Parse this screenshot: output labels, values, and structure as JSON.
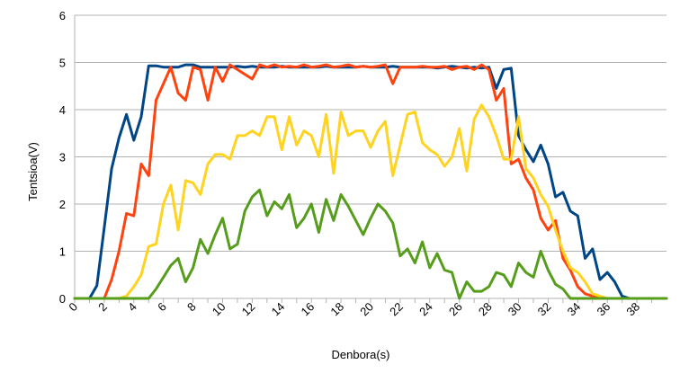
{
  "chart_data": {
    "type": "line",
    "title": "",
    "xlabel": "Denbora(s)",
    "ylabel": "Tentsioa(V)",
    "xlim": [
      0,
      40
    ],
    "ylim": [
      0,
      6
    ],
    "x_ticks": [
      "0",
      "2",
      "4",
      "6",
      "8",
      "10",
      "12",
      "14",
      "16",
      "18",
      "20",
      "22",
      "24",
      "26",
      "28",
      "30",
      "32",
      "34",
      "36",
      "38"
    ],
    "y_ticks": [
      "0",
      "1",
      "2",
      "3",
      "4",
      "5",
      "6"
    ],
    "grid": "horizontal",
    "legend": "none",
    "series": [
      {
        "color": "#004586",
        "x": [
          0,
          0.5,
          1,
          1.5,
          2,
          2.5,
          3,
          3.5,
          4,
          4.5,
          5,
          5.5,
          6,
          6.5,
          7,
          7.5,
          8,
          8.5,
          9,
          9.5,
          10,
          10.5,
          11,
          11.5,
          12,
          12.5,
          13,
          13.5,
          14,
          14.5,
          15,
          15.5,
          16,
          16.5,
          17,
          17.5,
          18,
          18.5,
          19,
          19.5,
          20,
          20.5,
          21,
          21.5,
          22,
          22.5,
          23,
          23.5,
          24,
          24.5,
          25,
          25.5,
          26,
          26.5,
          27,
          27.5,
          28,
          28.5,
          29,
          29.5,
          30,
          30.5,
          31,
          31.5,
          32,
          32.5,
          33,
          33.5,
          34,
          34.5,
          35,
          35.5,
          36,
          36.5,
          37,
          37.5,
          38,
          38.5,
          39,
          39.5,
          40
        ],
        "y": [
          0,
          0,
          0,
          0.27,
          1.5,
          2.75,
          3.4,
          3.9,
          3.35,
          3.85,
          4.93,
          4.93,
          4.9,
          4.9,
          4.9,
          4.95,
          4.95,
          4.9,
          4.9,
          4.9,
          4.9,
          4.9,
          4.92,
          4.9,
          4.92,
          4.9,
          4.9,
          4.9,
          4.92,
          4.9,
          4.9,
          4.9,
          4.9,
          4.9,
          4.92,
          4.9,
          4.9,
          4.9,
          4.9,
          4.92,
          4.9,
          4.9,
          4.9,
          4.92,
          4.9,
          4.9,
          4.9,
          4.9,
          4.9,
          4.88,
          4.9,
          4.92,
          4.9,
          4.88,
          4.9,
          4.88,
          4.9,
          4.45,
          4.85,
          4.88,
          3.45,
          3.15,
          2.9,
          3.25,
          2.85,
          2.15,
          2.25,
          1.85,
          1.75,
          0.85,
          1.05,
          0.4,
          0.55,
          0.35,
          0.05,
          0,
          0,
          0,
          0,
          0,
          0
        ]
      },
      {
        "color": "#ff420e",
        "x": [
          0,
          0.5,
          1,
          1.5,
          2,
          2.5,
          3,
          3.5,
          4,
          4.5,
          5,
          5.5,
          6,
          6.5,
          7,
          7.5,
          8,
          8.5,
          9,
          9.5,
          10,
          10.5,
          11,
          11.5,
          12,
          12.5,
          13,
          13.5,
          14,
          14.5,
          15,
          15.5,
          16,
          16.5,
          17,
          17.5,
          18,
          18.5,
          19,
          19.5,
          20,
          20.5,
          21,
          21.5,
          22,
          22.5,
          23,
          23.5,
          24,
          24.5,
          25,
          25.5,
          26,
          26.5,
          27,
          27.5,
          28,
          28.5,
          29,
          29.5,
          30,
          30.5,
          31,
          31.5,
          32,
          32.5,
          33,
          33.5,
          34,
          34.5,
          35,
          35.5,
          36,
          36.5,
          37,
          37.5,
          38,
          38.5,
          39,
          39.5,
          40
        ],
        "y": [
          0,
          0,
          0,
          0,
          0,
          0.4,
          1.0,
          1.8,
          1.75,
          2.85,
          2.6,
          4.2,
          4.55,
          4.9,
          4.35,
          4.2,
          4.9,
          4.85,
          4.2,
          4.9,
          4.6,
          4.95,
          4.85,
          4.75,
          4.65,
          4.95,
          4.9,
          4.95,
          4.9,
          4.92,
          4.9,
          4.95,
          4.9,
          4.92,
          4.95,
          4.9,
          4.92,
          4.95,
          4.9,
          4.92,
          4.9,
          4.92,
          4.95,
          4.55,
          4.9,
          4.9,
          4.9,
          4.92,
          4.9,
          4.9,
          4.92,
          4.85,
          4.9,
          4.92,
          4.85,
          4.95,
          4.85,
          4.2,
          4.45,
          2.85,
          2.95,
          2.55,
          2.3,
          1.7,
          1.45,
          1.65,
          0.85,
          0.6,
          0.25,
          0.1,
          0.05,
          0,
          0,
          0,
          0,
          0,
          0,
          0,
          0,
          0,
          0
        ]
      },
      {
        "color": "#ffd320",
        "x": [
          0,
          0.5,
          1,
          1.5,
          2,
          2.5,
          3,
          3.5,
          4,
          4.5,
          5,
          5.5,
          6,
          6.5,
          7,
          7.5,
          8,
          8.5,
          9,
          9.5,
          10,
          10.5,
          11,
          11.5,
          12,
          12.5,
          13,
          13.5,
          14,
          14.5,
          15,
          15.5,
          16,
          16.5,
          17,
          17.5,
          18,
          18.5,
          19,
          19.5,
          20,
          20.5,
          21,
          21.5,
          22,
          22.5,
          23,
          23.5,
          24,
          24.5,
          25,
          25.5,
          26,
          26.5,
          27,
          27.5,
          28,
          28.5,
          29,
          29.5,
          30,
          30.5,
          31,
          31.5,
          32,
          32.5,
          33,
          33.5,
          34,
          34.5,
          35,
          35.5,
          36,
          36.5,
          37,
          37.5,
          38,
          38.5,
          39,
          39.5,
          40
        ],
        "y": [
          0,
          0,
          0,
          0,
          0,
          0,
          0,
          0.05,
          0.25,
          0.5,
          1.1,
          1.15,
          2.0,
          2.4,
          1.45,
          2.5,
          2.45,
          2.2,
          2.85,
          3.05,
          3.05,
          2.95,
          3.45,
          3.45,
          3.55,
          3.45,
          3.85,
          3.85,
          3.15,
          3.85,
          3.25,
          3.55,
          3.45,
          3.0,
          3.9,
          2.65,
          3.95,
          3.45,
          3.55,
          3.55,
          3.2,
          3.55,
          3.75,
          2.6,
          3.25,
          3.9,
          3.95,
          3.3,
          3.15,
          3.05,
          2.8,
          3.0,
          3.6,
          2.7,
          3.8,
          4.1,
          3.85,
          3.45,
          2.95,
          2.95,
          3.85,
          2.75,
          2.55,
          2.2,
          1.95,
          1.45,
          1.0,
          0.65,
          0.55,
          0.35,
          0.1,
          0.05,
          0,
          0,
          0,
          0,
          0,
          0,
          0,
          0,
          0
        ]
      },
      {
        "color": "#579d1c",
        "x": [
          0,
          0.5,
          1,
          1.5,
          2,
          2.5,
          3,
          3.5,
          4,
          4.5,
          5,
          5.5,
          6,
          6.5,
          7,
          7.5,
          8,
          8.5,
          9,
          9.5,
          10,
          10.5,
          11,
          11.5,
          12,
          12.5,
          13,
          13.5,
          14,
          14.5,
          15,
          15.5,
          16,
          16.5,
          17,
          17.5,
          18,
          18.5,
          19,
          19.5,
          20,
          20.5,
          21,
          21.5,
          22,
          22.5,
          23,
          23.5,
          24,
          24.5,
          25,
          25.5,
          26,
          26.5,
          27,
          27.5,
          28,
          28.5,
          29,
          29.5,
          30,
          30.5,
          31,
          31.5,
          32,
          32.5,
          33,
          33.5,
          34,
          34.5,
          35,
          35.5,
          36,
          36.5,
          37,
          37.5,
          38,
          38.5,
          39,
          39.5,
          40
        ],
        "y": [
          0,
          0,
          0,
          0,
          0,
          0,
          0,
          0,
          0,
          0,
          0,
          0.2,
          0.45,
          0.7,
          0.85,
          0.35,
          0.65,
          1.25,
          0.95,
          1.35,
          1.7,
          1.05,
          1.15,
          1.85,
          2.15,
          2.3,
          1.75,
          2.05,
          1.9,
          2.2,
          1.5,
          1.7,
          2.0,
          1.4,
          2.1,
          1.65,
          2.2,
          1.95,
          1.65,
          1.35,
          1.7,
          2.0,
          1.85,
          1.6,
          0.9,
          1.05,
          0.75,
          1.2,
          0.65,
          0.95,
          0.6,
          0.55,
          0,
          0.35,
          0.15,
          0.15,
          0.25,
          0.55,
          0.5,
          0.25,
          0.75,
          0.55,
          0.45,
          1.0,
          0.6,
          0.3,
          0.2,
          0,
          0,
          0,
          0,
          0,
          0,
          0,
          0,
          0,
          0,
          0,
          0,
          0,
          0
        ]
      }
    ]
  }
}
